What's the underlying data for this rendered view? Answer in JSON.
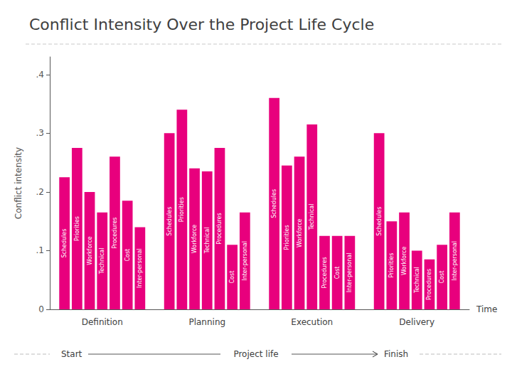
{
  "chart_data": {
    "type": "bar",
    "title": "Conflict Intensity Over the Project Life Cycle",
    "xlabel": "Time",
    "ylabel": "Conflict intensity",
    "categories": [
      "Definition",
      "Planning",
      "Execution",
      "Delivery"
    ],
    "series": [
      {
        "name": "Schedules",
        "values": [
          0.225,
          0.3,
          0.36,
          0.3
        ]
      },
      {
        "name": "Priorities",
        "values": [
          0.275,
          0.34,
          0.245,
          0.15
        ]
      },
      {
        "name": "Workforce",
        "values": [
          0.2,
          0.24,
          0.26,
          0.165
        ]
      },
      {
        "name": "Technical",
        "values": [
          0.165,
          0.235,
          0.315,
          0.1
        ]
      },
      {
        "name": "Procedures",
        "values": [
          0.26,
          0.275,
          0.125,
          0.085
        ]
      },
      {
        "name": "Cost",
        "values": [
          0.185,
          0.11,
          0.125,
          0.11
        ]
      },
      {
        "name": "Inter-personal",
        "values": [
          0.14,
          0.165,
          0.125,
          0.165
        ]
      }
    ],
    "color": "#E8007D",
    "ylim": [
      0,
      0.43
    ],
    "yticks": [
      0,
      {
        "value": 0.1,
        "label": ".1"
      },
      {
        "value": 0.2,
        "label": ".2"
      },
      {
        "value": 0.3,
        "label": ".3"
      },
      {
        "value": 0.4,
        "label": ".4"
      }
    ],
    "grid": false,
    "annotations": [
      "Start",
      "Project life",
      "Finish"
    ]
  }
}
